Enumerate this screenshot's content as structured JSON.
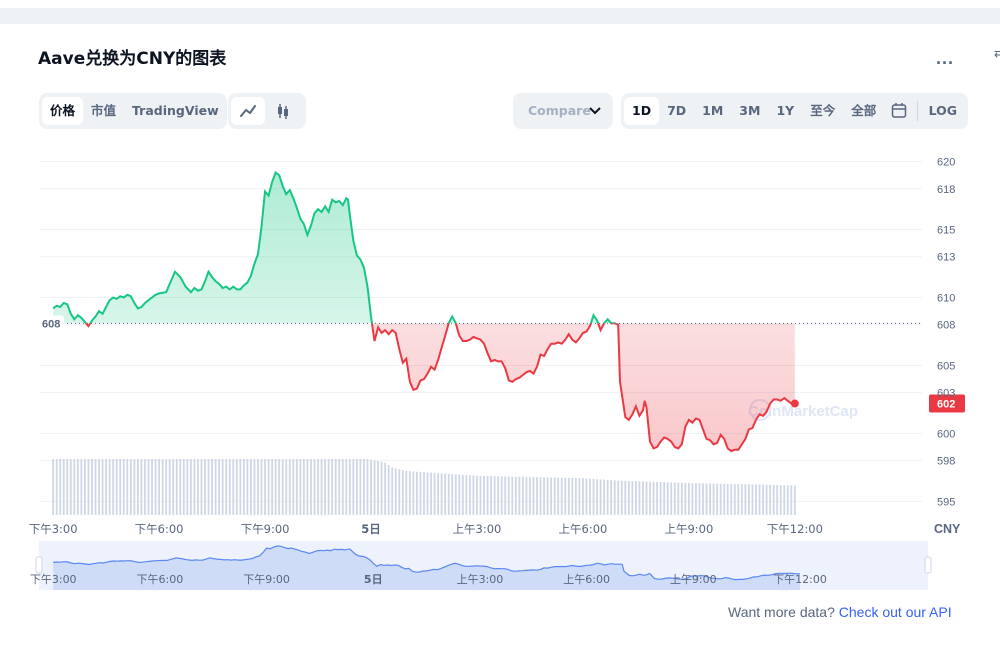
{
  "title": "Aave兑换为CNY的图表",
  "more_label": "...",
  "view_tabs": [
    "价格",
    "市值",
    "TradingView"
  ],
  "compare": {
    "label": "Compare",
    "icon": "chevron-down-icon"
  },
  "range_tabs": [
    "1D",
    "7D",
    "1M",
    "3M",
    "1Y",
    "至今",
    "全部"
  ],
  "calendar_icon": "calendar-icon",
  "log_label": "LOG",
  "colors": {
    "up": "#16c784",
    "down": "#ea3943",
    "accent": "#3861fb",
    "navigator": "#cfdcf8"
  },
  "watermark": "CoinMarketCap",
  "chart_data": {
    "type": "line",
    "currency": "CNY",
    "reference_label": "608",
    "reference_value": 608.1,
    "current_label": "602",
    "current_value": 602.2,
    "y_ticks": [
      "620",
      "618",
      "615",
      "613",
      "610",
      "608",
      "605",
      "603",
      "600",
      "598",
      "595"
    ],
    "ylim": [
      594,
      621
    ],
    "x_tick_labels": [
      "下午3:00",
      "下午6:00",
      "下午9:00",
      "5日",
      "上午3:00",
      "上午6:00",
      "上午9:00",
      "下午12:00"
    ],
    "navigator_tick_labels": [
      "下午3:00",
      "下午6:00",
      "下午9:00",
      "5日",
      "上午3:00",
      "上午6:00",
      "上午9:00",
      "下午12:00"
    ],
    "xlim_hours": [
      -3.4,
      21.6
    ],
    "price_series": [
      [
        -3.0,
        609.2
      ],
      [
        -2.9,
        609.4
      ],
      [
        -2.8,
        609.3
      ],
      [
        -2.7,
        609.6
      ],
      [
        -2.6,
        609.5
      ],
      [
        -2.5,
        608.8
      ],
      [
        -2.4,
        608.4
      ],
      [
        -2.3,
        608.7
      ],
      [
        -2.2,
        608.5
      ],
      [
        -2.1,
        608.2
      ],
      [
        -2.0,
        607.9
      ],
      [
        -1.9,
        608.3
      ],
      [
        -1.8,
        608.6
      ],
      [
        -1.7,
        609.0
      ],
      [
        -1.6,
        608.8
      ],
      [
        -1.5,
        609.3
      ],
      [
        -1.4,
        609.8
      ],
      [
        -1.3,
        610.0
      ],
      [
        -1.2,
        609.9
      ],
      [
        -1.1,
        610.1
      ],
      [
        -1.0,
        610.0
      ],
      [
        -0.9,
        610.2
      ],
      [
        -0.8,
        610.1
      ],
      [
        -0.7,
        609.6
      ],
      [
        -0.6,
        609.2
      ],
      [
        -0.5,
        609.3
      ],
      [
        -0.4,
        609.6
      ],
      [
        -0.3,
        609.8
      ],
      [
        -0.2,
        610.0
      ],
      [
        -0.1,
        610.2
      ],
      [
        0.0,
        610.3
      ],
      [
        0.2,
        610.4
      ],
      [
        0.3,
        611.0
      ],
      [
        0.45,
        611.9
      ],
      [
        0.6,
        611.5
      ],
      [
        0.75,
        610.8
      ],
      [
        0.9,
        610.4
      ],
      [
        1.0,
        610.7
      ],
      [
        1.1,
        610.5
      ],
      [
        1.2,
        610.6
      ],
      [
        1.3,
        611.2
      ],
      [
        1.4,
        611.9
      ],
      [
        1.5,
        611.5
      ],
      [
        1.6,
        611.2
      ],
      [
        1.7,
        611.0
      ],
      [
        1.8,
        610.7
      ],
      [
        1.9,
        610.8
      ],
      [
        2.0,
        610.6
      ],
      [
        2.1,
        610.8
      ],
      [
        2.2,
        610.6
      ],
      [
        2.3,
        610.6
      ],
      [
        2.4,
        610.9
      ],
      [
        2.5,
        611.1
      ],
      [
        2.6,
        611.6
      ],
      [
        2.7,
        612.5
      ],
      [
        2.8,
        613.2
      ],
      [
        2.9,
        615.2
      ],
      [
        3.0,
        617.8
      ],
      [
        3.1,
        617.5
      ],
      [
        3.2,
        618.5
      ],
      [
        3.3,
        619.2
      ],
      [
        3.4,
        619.0
      ],
      [
        3.5,
        618.2
      ],
      [
        3.6,
        617.6
      ],
      [
        3.7,
        617.9
      ],
      [
        3.8,
        617.3
      ],
      [
        3.9,
        616.6
      ],
      [
        4.0,
        615.8
      ],
      [
        4.1,
        615.4
      ],
      [
        4.2,
        614.6
      ],
      [
        4.3,
        615.3
      ],
      [
        4.4,
        616.2
      ],
      [
        4.5,
        616.5
      ],
      [
        4.6,
        616.3
      ],
      [
        4.7,
        616.7
      ],
      [
        4.8,
        616.3
      ],
      [
        4.9,
        617.2
      ],
      [
        5.0,
        617.0
      ],
      [
        5.1,
        617.1
      ],
      [
        5.2,
        616.8
      ],
      [
        5.3,
        617.3
      ],
      [
        5.35,
        617.2
      ],
      [
        5.4,
        616.1
      ],
      [
        5.5,
        614.2
      ],
      [
        5.6,
        613.1
      ],
      [
        5.7,
        612.8
      ],
      [
        5.8,
        612.2
      ],
      [
        5.9,
        610.8
      ],
      [
        6.0,
        608.6
      ],
      [
        6.1,
        606.8
      ],
      [
        6.2,
        607.8
      ],
      [
        6.3,
        607.4
      ],
      [
        6.4,
        607.6
      ],
      [
        6.5,
        607.3
      ],
      [
        6.6,
        607.6
      ],
      [
        6.7,
        607.4
      ],
      [
        6.8,
        606.2
      ],
      [
        6.9,
        605.2
      ],
      [
        7.0,
        605.5
      ],
      [
        7.1,
        603.8
      ],
      [
        7.2,
        603.2
      ],
      [
        7.3,
        603.3
      ],
      [
        7.4,
        603.9
      ],
      [
        7.5,
        604.0
      ],
      [
        7.6,
        604.4
      ],
      [
        7.7,
        604.9
      ],
      [
        7.8,
        604.7
      ],
      [
        7.9,
        605.4
      ],
      [
        8.0,
        606.3
      ],
      [
        8.1,
        607.2
      ],
      [
        8.2,
        608.1
      ],
      [
        8.3,
        608.6
      ],
      [
        8.4,
        608.1
      ],
      [
        8.5,
        607.2
      ],
      [
        8.6,
        606.8
      ],
      [
        8.7,
        606.8
      ],
      [
        8.8,
        606.9
      ],
      [
        8.9,
        607.1
      ],
      [
        9.0,
        607.0
      ],
      [
        9.1,
        606.9
      ],
      [
        9.2,
        606.6
      ],
      [
        9.3,
        605.9
      ],
      [
        9.4,
        605.3
      ],
      [
        9.5,
        605.4
      ],
      [
        9.6,
        605.3
      ],
      [
        9.7,
        605.3
      ],
      [
        9.8,
        604.8
      ],
      [
        9.9,
        603.9
      ],
      [
        10.0,
        603.8
      ],
      [
        10.1,
        604.0
      ],
      [
        10.2,
        604.1
      ],
      [
        10.3,
        604.3
      ],
      [
        10.4,
        604.5
      ],
      [
        10.5,
        604.6
      ],
      [
        10.6,
        604.4
      ],
      [
        10.7,
        604.9
      ],
      [
        10.8,
        605.8
      ],
      [
        10.9,
        605.7
      ],
      [
        11.0,
        606.2
      ],
      [
        11.1,
        606.6
      ],
      [
        11.2,
        606.6
      ],
      [
        11.3,
        606.7
      ],
      [
        11.4,
        606.6
      ],
      [
        11.5,
        606.9
      ],
      [
        11.6,
        607.3
      ],
      [
        11.7,
        606.9
      ],
      [
        11.8,
        606.7
      ],
      [
        11.9,
        607.0
      ],
      [
        12.0,
        607.4
      ],
      [
        12.1,
        607.5
      ],
      [
        12.2,
        607.9
      ],
      [
        12.3,
        608.7
      ],
      [
        12.4,
        608.3
      ],
      [
        12.5,
        607.6
      ],
      [
        12.6,
        608.1
      ],
      [
        12.7,
        608.4
      ],
      [
        12.8,
        608.1
      ],
      [
        12.9,
        608.1
      ],
      [
        13.0,
        608.0
      ],
      [
        13.05,
        603.8
      ],
      [
        13.2,
        601.2
      ],
      [
        13.3,
        601.0
      ],
      [
        13.4,
        601.4
      ],
      [
        13.5,
        602.0
      ],
      [
        13.6,
        601.3
      ],
      [
        13.7,
        601.7
      ],
      [
        13.75,
        602.4
      ],
      [
        13.8,
        601.9
      ],
      [
        13.9,
        599.4
      ],
      [
        14.0,
        598.9
      ],
      [
        14.1,
        599.0
      ],
      [
        14.2,
        599.4
      ],
      [
        14.3,
        599.7
      ],
      [
        14.4,
        599.6
      ],
      [
        14.5,
        599.4
      ],
      [
        14.6,
        599.0
      ],
      [
        14.7,
        598.9
      ],
      [
        14.8,
        599.2
      ],
      [
        14.9,
        600.5
      ],
      [
        15.0,
        601.0
      ],
      [
        15.1,
        600.8
      ],
      [
        15.2,
        601.1
      ],
      [
        15.3,
        601.0
      ],
      [
        15.4,
        600.3
      ],
      [
        15.5,
        599.6
      ],
      [
        15.6,
        599.5
      ],
      [
        15.7,
        599.2
      ],
      [
        15.8,
        599.3
      ],
      [
        15.9,
        599.9
      ],
      [
        16.0,
        599.6
      ],
      [
        16.1,
        598.9
      ],
      [
        16.2,
        598.7
      ],
      [
        16.3,
        598.8
      ],
      [
        16.4,
        598.8
      ],
      [
        16.5,
        599.2
      ],
      [
        16.6,
        599.6
      ],
      [
        16.7,
        600.3
      ],
      [
        16.8,
        600.4
      ],
      [
        16.9,
        601.0
      ],
      [
        17.0,
        601.4
      ],
      [
        17.1,
        601.3
      ],
      [
        17.2,
        601.6
      ],
      [
        17.3,
        602.2
      ],
      [
        17.4,
        602.5
      ],
      [
        17.5,
        602.5
      ],
      [
        17.6,
        602.4
      ],
      [
        17.7,
        602.6
      ],
      [
        17.8,
        602.4
      ],
      [
        17.9,
        602.2
      ],
      [
        18.0,
        602.2
      ]
    ],
    "volume_series": [
      [
        -3.0,
        1.0
      ],
      [
        0.0,
        1.0
      ],
      [
        3.0,
        1.0
      ],
      [
        5.9,
        1.0
      ],
      [
        6.4,
        0.97
      ],
      [
        6.6,
        0.93
      ],
      [
        7.0,
        0.9
      ],
      [
        9.0,
        0.86
      ],
      [
        12.0,
        0.84
      ],
      [
        13.0,
        0.82
      ],
      [
        15.0,
        0.8
      ],
      [
        18.0,
        0.78
      ]
    ]
  },
  "footer": {
    "text": "Want more data?",
    "link": "Check out our API"
  }
}
